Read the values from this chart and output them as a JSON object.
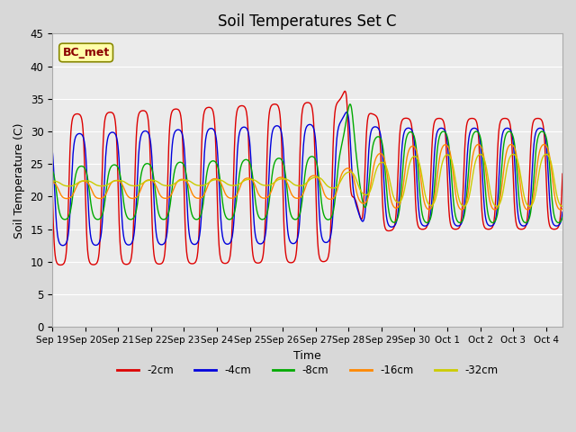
{
  "title": "Soil Temperatures Set C",
  "xlabel": "Time",
  "ylabel": "Soil Temperature (C)",
  "annotation": "BC_met",
  "ylim": [
    0,
    45
  ],
  "legend_labels": [
    "-2cm",
    "-4cm",
    "-8cm",
    "-16cm",
    "-32cm"
  ],
  "line_colors": [
    "#dd0000",
    "#0000dd",
    "#00aa00",
    "#ff8800",
    "#cccc00"
  ],
  "x_tick_labels": [
    "Sep 19",
    "Sep 20",
    "Sep 21",
    "Sep 22",
    "Sep 23",
    "Sep 24",
    "Sep 25",
    "Sep 26",
    "Sep 27",
    "Sep 28",
    "Sep 29",
    "Sep 30",
    "Oct 1",
    "Oct 2",
    "Oct 3",
    "Oct 4"
  ],
  "background_color": "#d8d8d8",
  "plot_bg_color": "#ebebeb",
  "grid_color": "#ffffff",
  "title_fontsize": 12,
  "axis_label_fontsize": 9
}
